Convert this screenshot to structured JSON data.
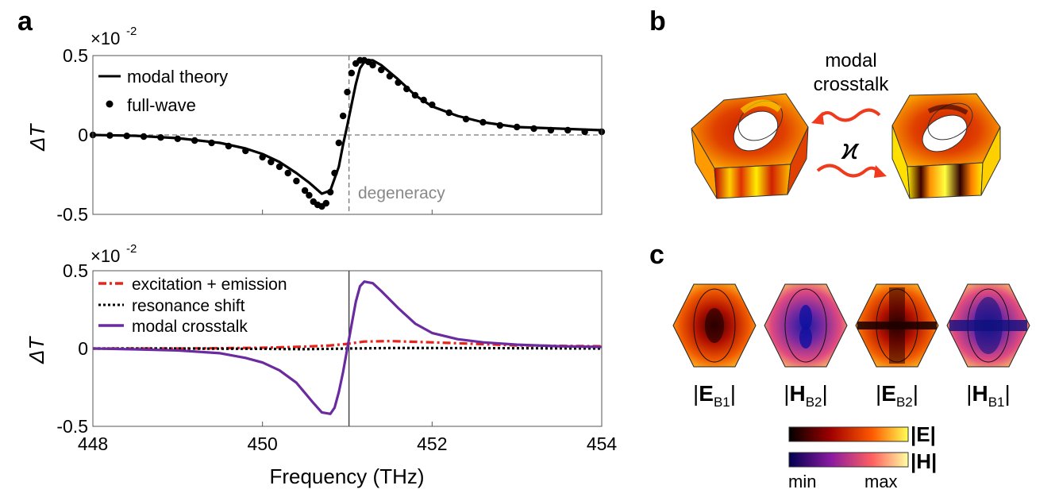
{
  "panel_labels": {
    "a": "a",
    "b": "b",
    "c": "c"
  },
  "chart_data": [
    {
      "type": "line",
      "panel": "a-top",
      "xlim": [
        448,
        454
      ],
      "ylim": [
        -0.5,
        0.5
      ],
      "yticks": [
        -0.5,
        0,
        0.5
      ],
      "ytick_labels": [
        "-0.5",
        "0",
        "0.5"
      ],
      "xticks": [
        448,
        450,
        452,
        454
      ],
      "ylabel": "ΔT",
      "y_multiplier_base": "×10",
      "y_multiplier_exp": "-2",
      "grid": false,
      "legend": "top-left",
      "zero_line": true,
      "vline": {
        "x": 451.02,
        "label": "degeneracy"
      },
      "series": [
        {
          "name": "modal theory",
          "style": "solid",
          "color": "#000000",
          "x": [
            448.0,
            448.5,
            449.0,
            449.5,
            449.8,
            450.0,
            450.2,
            450.4,
            450.55,
            450.7,
            450.8,
            450.9,
            450.95,
            451.0,
            451.05,
            451.1,
            451.15,
            451.2,
            451.25,
            451.3,
            451.4,
            451.6,
            451.8,
            452.0,
            452.3,
            452.6,
            453.0,
            453.5,
            454.0
          ],
          "y": [
            0.0,
            -0.005,
            -0.02,
            -0.05,
            -0.085,
            -0.12,
            -0.17,
            -0.24,
            -0.3,
            -0.37,
            -0.35,
            -0.2,
            -0.06,
            0.06,
            0.19,
            0.32,
            0.42,
            0.46,
            0.47,
            0.47,
            0.44,
            0.35,
            0.25,
            0.18,
            0.12,
            0.08,
            0.05,
            0.04,
            0.03
          ]
        },
        {
          "name": "full-wave",
          "style": "dots",
          "color": "#000000",
          "x": [
            448.0,
            448.2,
            448.4,
            448.6,
            448.8,
            449.0,
            449.2,
            449.4,
            449.6,
            449.8,
            450.0,
            450.1,
            450.2,
            450.3,
            450.4,
            450.5,
            450.55,
            450.6,
            450.65,
            450.7,
            450.75,
            450.8,
            450.85,
            450.9,
            450.95,
            451.0,
            451.05,
            451.1,
            451.15,
            451.2,
            451.25,
            451.3,
            451.4,
            451.5,
            451.6,
            451.7,
            451.8,
            451.9,
            452.0,
            452.2,
            452.4,
            452.6,
            452.8,
            453.0,
            453.2,
            453.4,
            453.6,
            453.8,
            454.0
          ],
          "y": [
            0.0,
            -0.003,
            -0.006,
            -0.01,
            -0.016,
            -0.024,
            -0.035,
            -0.05,
            -0.07,
            -0.1,
            -0.14,
            -0.17,
            -0.2,
            -0.24,
            -0.29,
            -0.35,
            -0.38,
            -0.42,
            -0.44,
            -0.45,
            -0.43,
            -0.36,
            -0.24,
            -0.05,
            0.12,
            0.27,
            0.39,
            0.45,
            0.47,
            0.47,
            0.46,
            0.44,
            0.41,
            0.37,
            0.33,
            0.29,
            0.25,
            0.22,
            0.19,
            0.14,
            0.1,
            0.08,
            0.06,
            0.05,
            0.04,
            0.03,
            0.03,
            0.02,
            0.02
          ]
        }
      ]
    },
    {
      "type": "line",
      "panel": "a-bottom",
      "xlim": [
        448,
        454
      ],
      "ylim": [
        -0.5,
        0.5
      ],
      "yticks": [
        -0.5,
        0,
        0.5
      ],
      "ytick_labels": [
        "-0.5",
        "0",
        "0.5"
      ],
      "xticks": [
        448,
        450,
        452,
        454
      ],
      "xtick_labels": [
        "448",
        "450",
        "452",
        "454"
      ],
      "xlabel": "Frequency (THz)",
      "ylabel": "ΔT",
      "y_multiplier_base": "×10",
      "y_multiplier_exp": "-2",
      "grid": false,
      "legend": "top-left",
      "vline": {
        "x": 451.02
      },
      "series": [
        {
          "name": "excitation + emission",
          "style": "dashdot",
          "color": "#e8231b",
          "x": [
            448.0,
            449.0,
            449.5,
            450.0,
            450.5,
            450.8,
            451.0,
            451.2,
            451.5,
            452.0,
            452.5,
            453.0,
            454.0
          ],
          "y": [
            0.0,
            0.0,
            0.002,
            0.005,
            0.012,
            0.02,
            0.03,
            0.045,
            0.048,
            0.04,
            0.03,
            0.02,
            0.015
          ]
        },
        {
          "name": "resonance shift",
          "style": "dotted",
          "color": "#000000",
          "x": [
            448.0,
            449.0,
            450.0,
            450.5,
            451.0,
            451.5,
            452.0,
            453.0,
            454.0
          ],
          "y": [
            0.0,
            0.0,
            -0.002,
            -0.004,
            0.0,
            0.003,
            0.003,
            0.002,
            0.0
          ]
        },
        {
          "name": "modal crosstalk",
          "style": "solid",
          "color": "#6a2aa0",
          "x": [
            448.0,
            448.5,
            449.0,
            449.5,
            449.8,
            450.0,
            450.2,
            450.4,
            450.6,
            450.7,
            450.8,
            450.85,
            450.9,
            450.95,
            451.0,
            451.05,
            451.1,
            451.15,
            451.2,
            451.3,
            451.4,
            451.6,
            451.8,
            452.0,
            452.3,
            452.6,
            453.0,
            453.5,
            454.0
          ],
          "y": [
            0.0,
            -0.005,
            -0.012,
            -0.03,
            -0.06,
            -0.09,
            -0.14,
            -0.22,
            -0.35,
            -0.41,
            -0.42,
            -0.38,
            -0.28,
            -0.15,
            0.0,
            0.15,
            0.3,
            0.4,
            0.43,
            0.42,
            0.37,
            0.26,
            0.16,
            0.1,
            0.06,
            0.04,
            0.025,
            0.015,
            0.01
          ]
        }
      ]
    }
  ],
  "panel_b": {
    "title_line1": "modal",
    "title_line2": "crosstalk",
    "coupling_symbol": "ϰ",
    "arrow_color": "#f03a1e"
  },
  "panel_c": {
    "maps": [
      {
        "label_base": "E",
        "label_sub": "B1",
        "palette": "hot"
      },
      {
        "label_base": "H",
        "label_sub": "B2",
        "palette": "plasma"
      },
      {
        "label_base": "E",
        "label_sub": "B2",
        "palette": "hot"
      },
      {
        "label_base": "H",
        "label_sub": "B1",
        "palette": "plasma"
      }
    ],
    "colorbars": [
      {
        "label": "|E|",
        "stops": [
          "#000000",
          "#a00000",
          "#ff5a00",
          "#ffff55"
        ]
      },
      {
        "label": "|H|",
        "stops": [
          "#000050",
          "#8a1aa0",
          "#ff6060",
          "#ffffa0"
        ]
      }
    ],
    "colorbar_min": "min",
    "colorbar_max": "max"
  }
}
